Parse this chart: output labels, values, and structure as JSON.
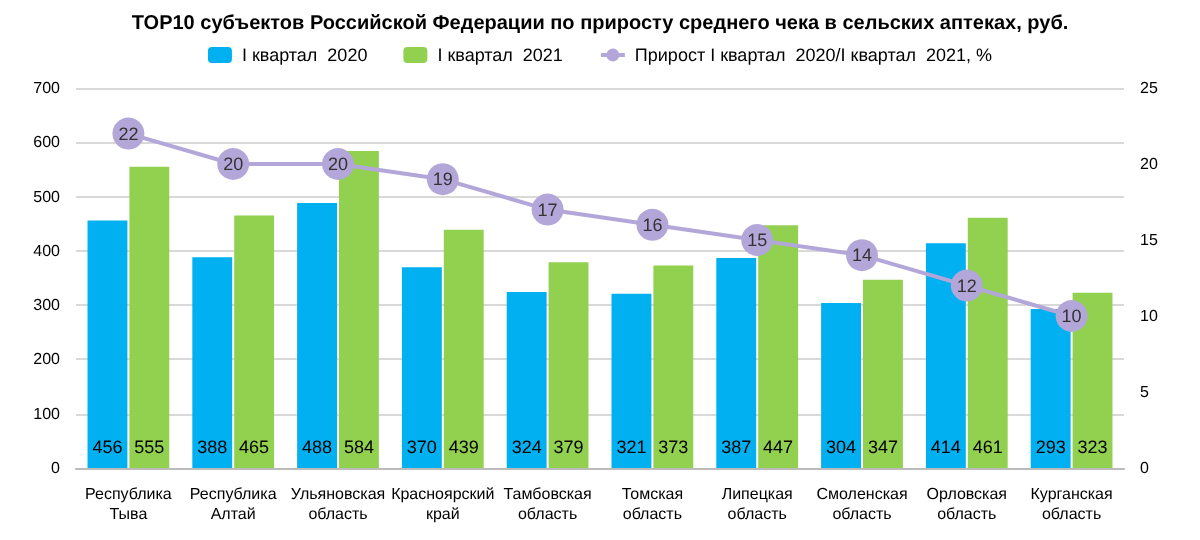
{
  "chart_data": {
    "type": "bar",
    "title": "TOP10 субъектов Российской Федерации по приросту среднего чека в сельских аптеках, руб.",
    "categories": [
      "Республика Тыва",
      "Республика Алтай",
      "Ульяновская область",
      "Красноярский край",
      "Тамбовская область",
      "Томская область",
      "Липецкая область",
      "Смоленская область",
      "Орловская область",
      "Курганская область"
    ],
    "series": [
      {
        "name": "I квартал  2020",
        "color": "#00b0f0",
        "values": [
          456,
          388,
          488,
          370,
          324,
          321,
          387,
          304,
          414,
          293
        ]
      },
      {
        "name": "I квартал  2021",
        "color": "#92d050",
        "values": [
          555,
          465,
          584,
          439,
          379,
          373,
          447,
          347,
          461,
          323
        ]
      },
      {
        "name": "Прирост I квартал  2020/I квартал  2021, %",
        "type": "line",
        "axis": "y2",
        "color": "#b3a7d9",
        "values": [
          22,
          20,
          20,
          19,
          17,
          16,
          15,
          14,
          12,
          10
        ]
      }
    ],
    "ylim": [
      0,
      700
    ],
    "yticks": [
      0,
      100,
      200,
      300,
      400,
      500,
      600,
      700
    ],
    "y2lim": [
      0,
      25
    ],
    "y2ticks": [
      0,
      5,
      10,
      15,
      20,
      25
    ],
    "grid": "y",
    "legend": "top",
    "marker": "circle",
    "data_labels": true
  }
}
